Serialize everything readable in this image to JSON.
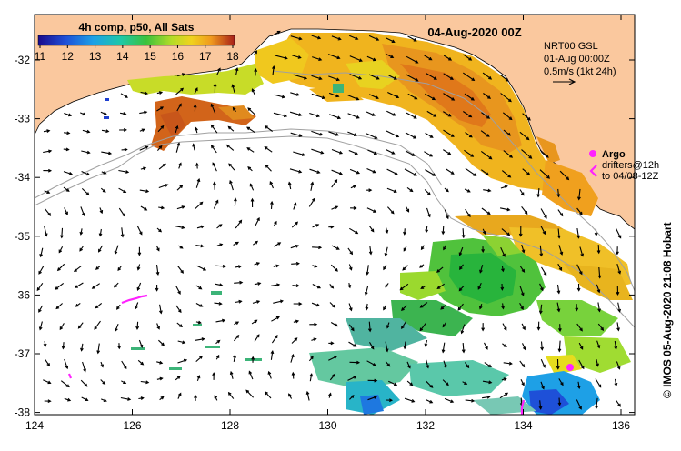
{
  "map": {
    "date_title": "04-Aug-2020 00Z",
    "sst_title": "4h comp, p50, All Sats",
    "colorbar_ticks": [
      "11",
      "12",
      "13",
      "14",
      "15",
      "16",
      "17",
      "18"
    ],
    "colorbar_colors": [
      "#1a0a8c",
      "#1e3fd0",
      "#1e9be6",
      "#22c3a0",
      "#3cc23c",
      "#9bd92e",
      "#f0e31e",
      "#f5a51e",
      "#e0701a",
      "#a8201a"
    ],
    "current_info": {
      "line1": "NRT00 GSL",
      "line2": "01-Aug 00:00Z",
      "line3": "0.5m/s (1kt 24h)"
    },
    "legend": {
      "argo": "Argo",
      "drifters": "drifters@12h",
      "drifters_to": "to 04/08-12Z"
    },
    "credit": "© IMOS 05-Aug-2020 21:08 Hobart",
    "x_ticks": [
      "124",
      "126",
      "128",
      "130",
      "132",
      "134",
      "136"
    ],
    "y_ticks": [
      "-32",
      "-33",
      "-34",
      "-35",
      "-36",
      "-37",
      "-38"
    ],
    "land_color": "#fac89e",
    "argo_color": "#ff22ff"
  }
}
